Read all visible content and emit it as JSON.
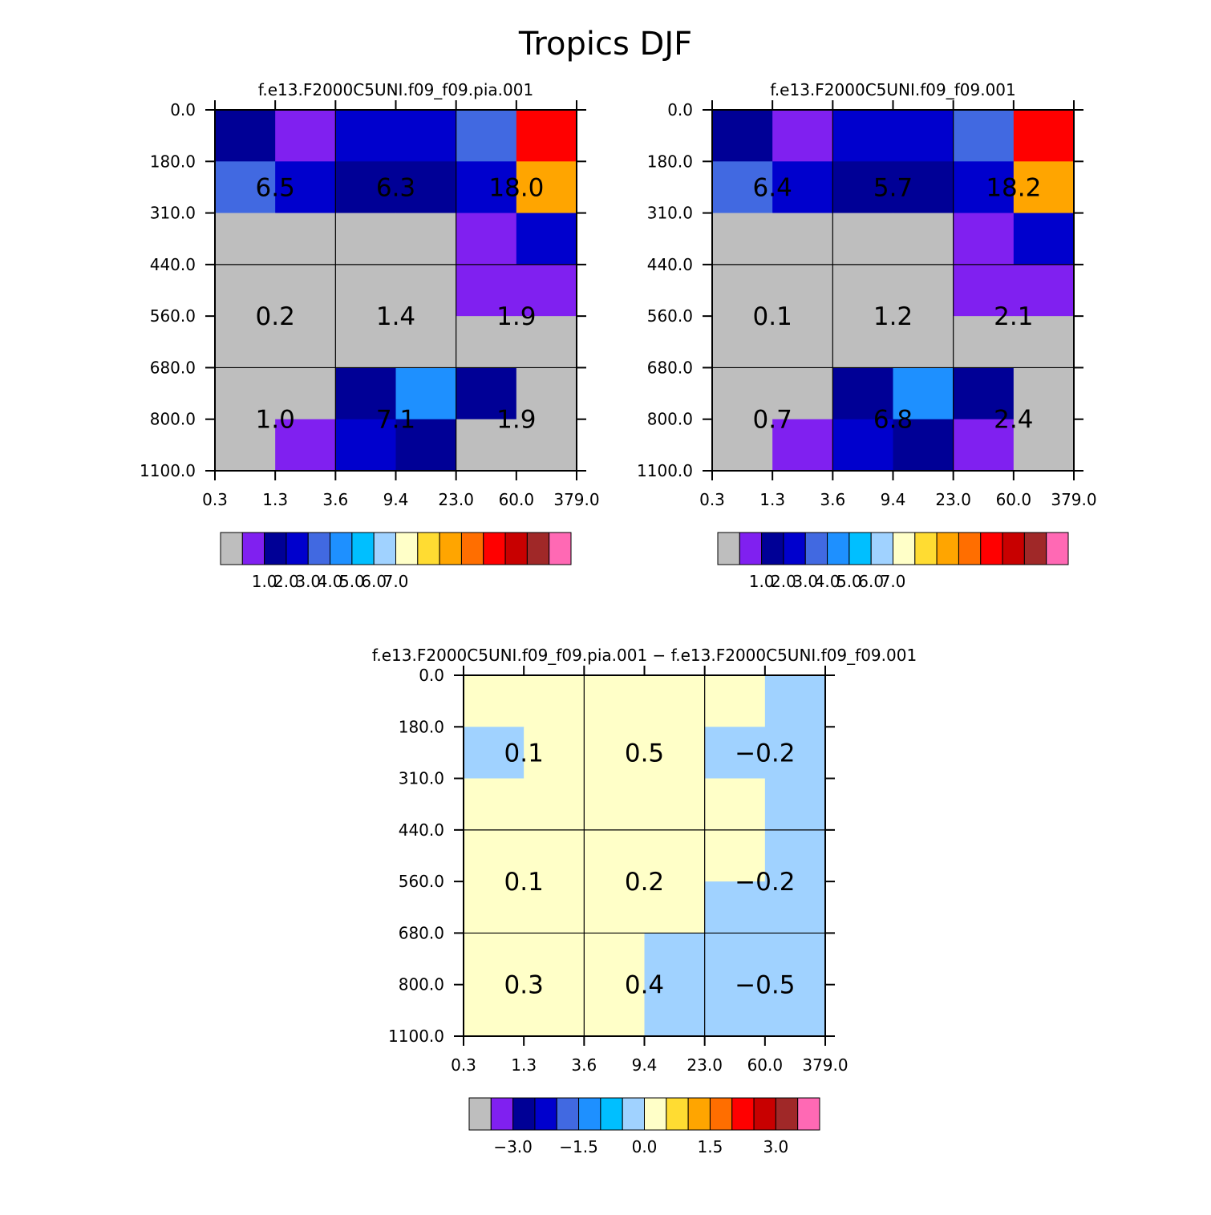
{
  "title": "Tropics DJF",
  "colors": {
    "palette": [
      "#bebebe",
      "#8020f0",
      "#000096",
      "#0000cd",
      "#4169e1",
      "#1e90ff",
      "#00bfff",
      "#a0d2ff",
      "#ffffc8",
      "#ffdc32",
      "#ffa500",
      "#ff6e00",
      "#ff0000",
      "#c80000",
      "#a02828",
      "#ff69b4"
    ]
  },
  "chart_data": [
    {
      "type": "heatmap",
      "title": "f.e13.F2000C5UNI.f09_f09.pia.001",
      "x_tick_labels": [
        "0.3",
        "1.3",
        "3.6",
        "9.4",
        "23.0",
        "60.0",
        "379.0"
      ],
      "y_tick_labels": [
        "0.0",
        "180.0",
        "310.0",
        "440.0",
        "560.0",
        "680.0",
        "800.0",
        "1100.0"
      ],
      "color_index_grid": [
        [
          2,
          1,
          3,
          3,
          4,
          12
        ],
        [
          4,
          3,
          2,
          2,
          3,
          10
        ],
        [
          0,
          0,
          0,
          0,
          1,
          3
        ],
        [
          0,
          0,
          0,
          0,
          1,
          1
        ],
        [
          0,
          0,
          0,
          0,
          0,
          0
        ],
        [
          0,
          0,
          2,
          5,
          2,
          0
        ],
        [
          0,
          1,
          3,
          2,
          0,
          0
        ]
      ],
      "block_values": [
        [
          "6.5",
          "6.3",
          "18.0"
        ],
        [
          "0.2",
          "1.4",
          "1.9"
        ],
        [
          "1.0",
          "7.1",
          "1.9"
        ]
      ],
      "colorbar_labels": [
        "1.0",
        "2.0",
        "3.0",
        "4.0",
        "5.0",
        "6.0",
        "7.0"
      ]
    },
    {
      "type": "heatmap",
      "title": "f.e13.F2000C5UNI.f09_f09.001",
      "x_tick_labels": [
        "0.3",
        "1.3",
        "3.6",
        "9.4",
        "23.0",
        "60.0",
        "379.0"
      ],
      "y_tick_labels": [
        "0.0",
        "180.0",
        "310.0",
        "440.0",
        "560.0",
        "680.0",
        "800.0",
        "1100.0"
      ],
      "color_index_grid": [
        [
          2,
          1,
          3,
          3,
          4,
          12
        ],
        [
          4,
          3,
          2,
          2,
          3,
          10
        ],
        [
          0,
          0,
          0,
          0,
          1,
          3
        ],
        [
          0,
          0,
          0,
          0,
          1,
          1
        ],
        [
          0,
          0,
          0,
          0,
          0,
          0
        ],
        [
          0,
          0,
          2,
          5,
          2,
          0
        ],
        [
          0,
          1,
          3,
          2,
          1,
          0
        ]
      ],
      "block_values": [
        [
          "6.4",
          "5.7",
          "18.2"
        ],
        [
          "0.1",
          "1.2",
          "2.1"
        ],
        [
          "0.7",
          "6.8",
          "2.4"
        ]
      ],
      "colorbar_labels": [
        "1.0",
        "2.0",
        "3.0",
        "4.0",
        "5.0",
        "6.0",
        "7.0"
      ]
    },
    {
      "type": "heatmap",
      "title": "f.e13.F2000C5UNI.f09_f09.pia.001 − f.e13.F2000C5UNI.f09_f09.001",
      "x_tick_labels": [
        "0.3",
        "1.3",
        "3.6",
        "9.4",
        "23.0",
        "60.0",
        "379.0"
      ],
      "y_tick_labels": [
        "0.0",
        "180.0",
        "310.0",
        "440.0",
        "560.0",
        "680.0",
        "800.0",
        "1100.0"
      ],
      "color_index_grid": [
        [
          8,
          8,
          8,
          8,
          8,
          7
        ],
        [
          7,
          8,
          8,
          8,
          7,
          7
        ],
        [
          8,
          8,
          8,
          8,
          8,
          7
        ],
        [
          8,
          8,
          8,
          8,
          8,
          7
        ],
        [
          8,
          8,
          8,
          8,
          7,
          7
        ],
        [
          8,
          8,
          8,
          7,
          7,
          7
        ],
        [
          8,
          8,
          8,
          7,
          7,
          7
        ]
      ],
      "block_values": [
        [
          "0.1",
          "0.5",
          "−0.2"
        ],
        [
          "0.1",
          "0.2",
          "−0.2"
        ],
        [
          "0.3",
          "0.4",
          "−0.5"
        ]
      ],
      "colorbar_labels": [
        "−3.0",
        "−1.5",
        "0.0",
        "1.5",
        "3.0"
      ]
    }
  ]
}
